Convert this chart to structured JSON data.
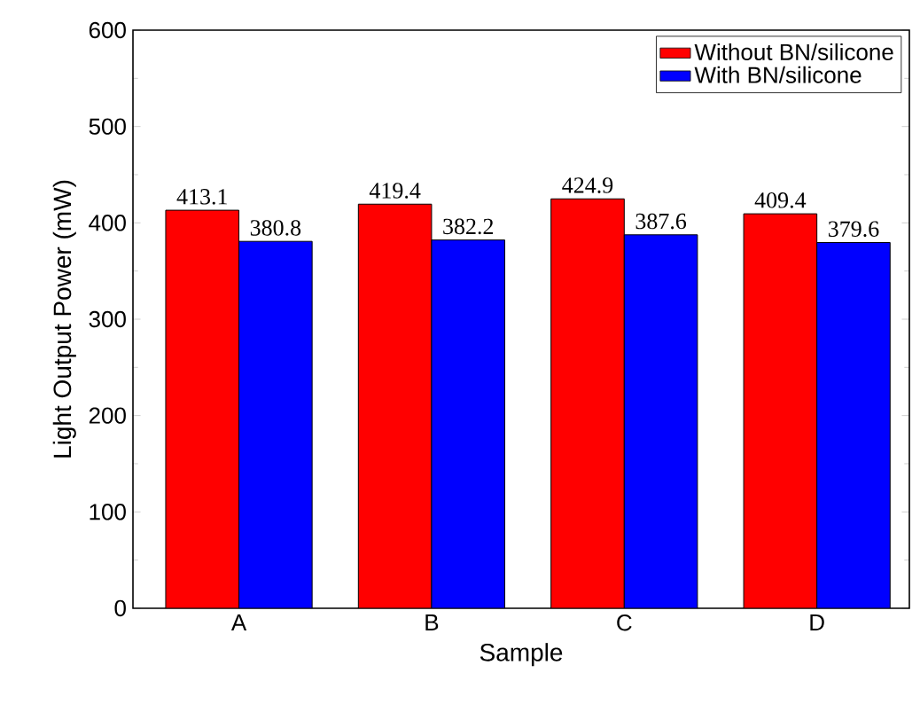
{
  "chart_data": {
    "type": "bar",
    "xlabel": "Sample",
    "ylabel": "Light Output Power (mW)",
    "categories": [
      "A",
      "B",
      "C",
      "D"
    ],
    "series": [
      {
        "name": "Without BN/silicone",
        "color": "#ff0000",
        "values": [
          413.1,
          419.4,
          424.9,
          409.4
        ]
      },
      {
        "name": "With BN/silicone",
        "color": "#0000ff",
        "values": [
          380.8,
          382.2,
          387.6,
          379.6
        ]
      }
    ],
    "ylim": [
      0,
      600
    ],
    "yticks": [
      0,
      100,
      200,
      300,
      400,
      500,
      600
    ],
    "data_labels": true,
    "legend": "top right",
    "grid": false
  }
}
